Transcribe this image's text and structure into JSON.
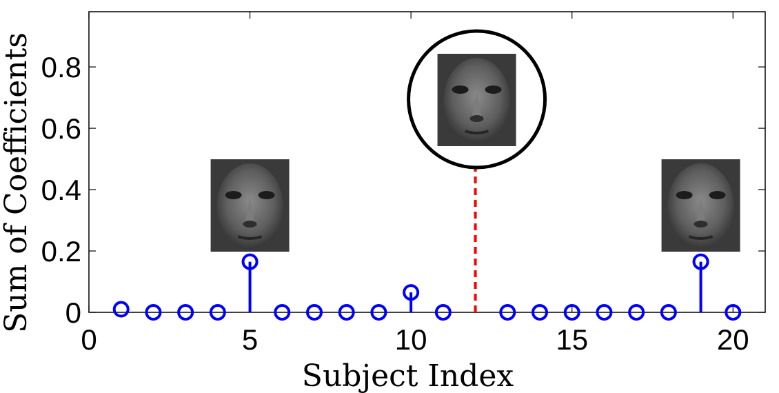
{
  "chart_data": {
    "type": "stem",
    "xlabel": "Subject Index",
    "ylabel": "Sum of Coefficients",
    "xlim": [
      0,
      21
    ],
    "ylim": [
      0,
      0.98
    ],
    "xticks": [
      "0",
      "5",
      "10",
      "15",
      "20"
    ],
    "yticks": [
      "0",
      "0.2",
      "0.4",
      "0.6",
      "0.8"
    ],
    "grid": false,
    "series": [
      {
        "marker": "circle",
        "color": "#0000ff",
        "x": [
          1,
          2,
          3,
          4,
          5,
          6,
          7,
          8,
          9,
          10,
          11,
          13,
          14,
          15,
          16,
          17,
          18,
          19,
          20
        ],
        "values": [
          0.01,
          0,
          0,
          0,
          0.165,
          0,
          0,
          0,
          0,
          0.065,
          0,
          0,
          0,
          0,
          0,
          0,
          0,
          0.165,
          0
        ]
      },
      {
        "marker": "x",
        "linestyle": "dashed",
        "color": "#ff0000",
        "x": [
          12
        ],
        "values": [
          0.505
        ]
      }
    ],
    "annotations": [
      {
        "kind": "face-thumbnail",
        "at_subject": 5,
        "highlighted": false
      },
      {
        "kind": "face-thumbnail",
        "at_subject": 12,
        "highlighted": true
      },
      {
        "kind": "face-thumbnail",
        "at_subject": 19,
        "highlighted": false
      }
    ]
  }
}
